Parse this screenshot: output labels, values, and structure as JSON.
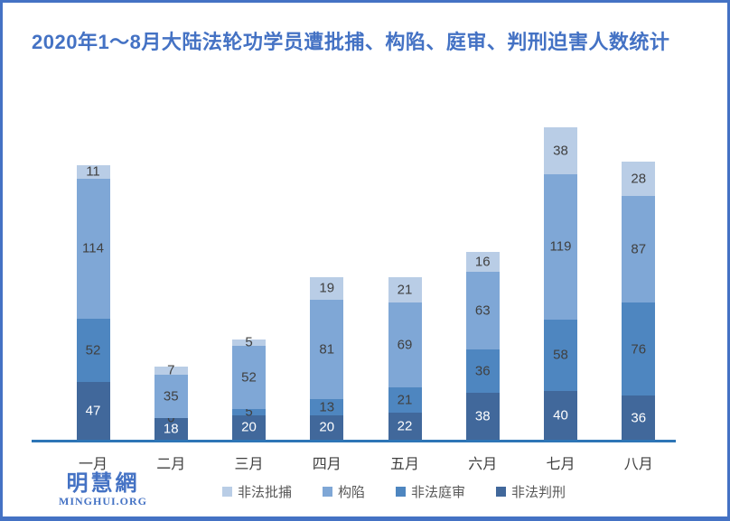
{
  "frame": {
    "accent_color": "#4472C4"
  },
  "logo": {
    "name": "明慧網",
    "url_text": "MINGHUI.ORG"
  },
  "chart_data": {
    "type": "bar",
    "stacked": true,
    "title": "2020年1～8月大陆法轮功学员遭批捕、构陷、庭审、判刑迫害人数统计",
    "categories": [
      "一月",
      "二月",
      "三月",
      "四月",
      "五月",
      "六月",
      "七月",
      "八月"
    ],
    "series": [
      {
        "name": "非法判刑",
        "color": "#41689B",
        "label_color": "#FFFFFF",
        "values": [
          47,
          18,
          20,
          20,
          22,
          38,
          40,
          36
        ]
      },
      {
        "name": "非法庭审",
        "color": "#4E86C0",
        "label_color": "#404040",
        "values": [
          52,
          0,
          5,
          13,
          21,
          36,
          58,
          76
        ]
      },
      {
        "name": "构陷",
        "color": "#7FA7D6",
        "label_color": "#404040",
        "values": [
          114,
          35,
          52,
          81,
          69,
          63,
          119,
          87
        ]
      },
      {
        "name": "非法批捕",
        "color": "#B9CDE6",
        "label_color": "#404040",
        "values": [
          11,
          7,
          5,
          19,
          21,
          16,
          38,
          28
        ]
      }
    ],
    "stacking_order": "bottom_to_top",
    "legend_order": [
      "非法批捕",
      "构陷",
      "非法庭审",
      "非法判刑"
    ],
    "legend_position": "bottom",
    "data_labels": true,
    "grid": false,
    "axis_color": "#2E75B6",
    "totals_by_month": [
      224,
      60,
      82,
      133,
      133,
      153,
      255,
      227
    ]
  }
}
